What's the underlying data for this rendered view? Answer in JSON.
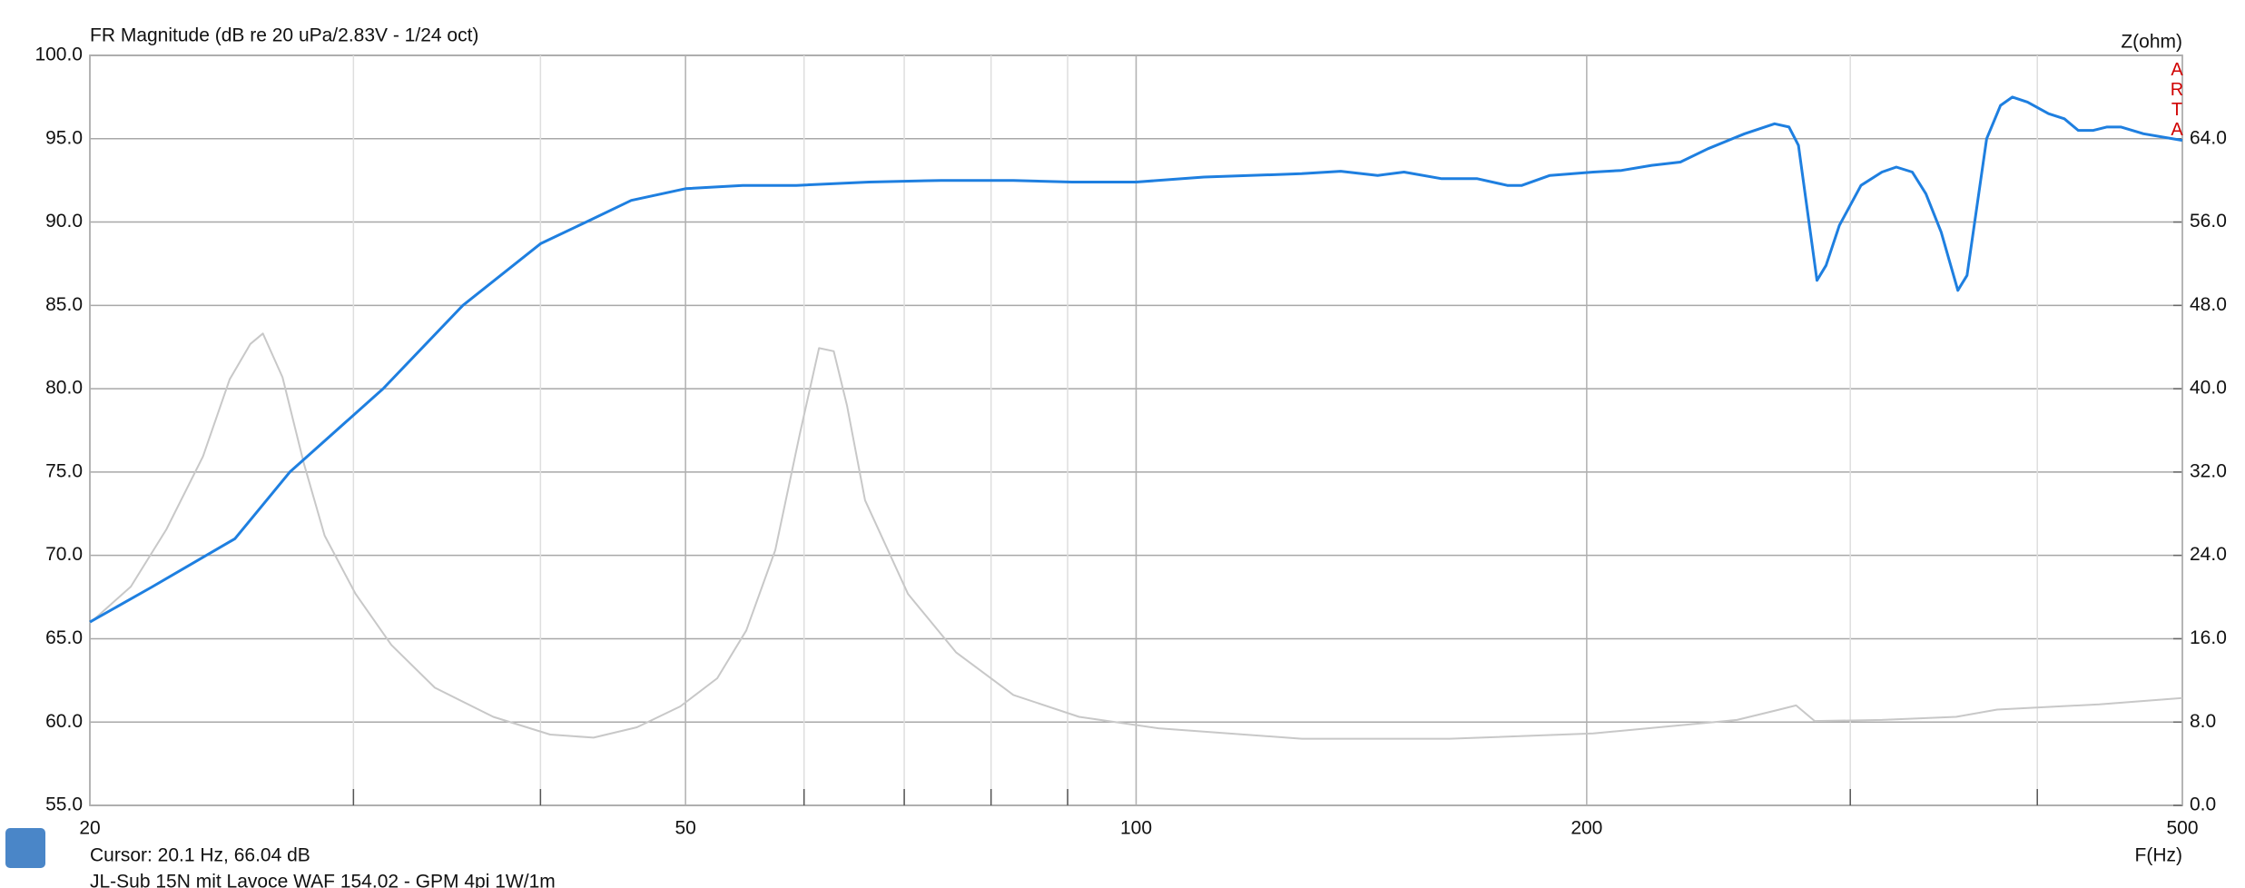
{
  "chart_data": {
    "type": "line",
    "title": "FR Magnitude (dB re 20 uPa/2.83V - 1/24 oct)",
    "y2_label": "Z(ohm)",
    "x_label": "F(Hz)",
    "watermark": "ARTA",
    "cursor": "Cursor: 20.1 Hz, 66.04 dB",
    "legend": "JL-Sub 15N mit Lavoce WAF 154.02 - GPM 4pi 1W/1m",
    "xscale": "log",
    "grid": true,
    "xlim": [
      20,
      500
    ],
    "xticks": [
      20,
      50,
      100,
      200,
      500
    ],
    "xminorticks": [
      30,
      40,
      60,
      70,
      80,
      90,
      300,
      400
    ],
    "ylim": [
      55,
      100
    ],
    "yticks": [
      {
        "value": 55,
        "label": "55.0"
      },
      {
        "value": 60,
        "label": "60.0"
      },
      {
        "value": 65,
        "label": "65.0"
      },
      {
        "value": 70,
        "label": "70.0"
      },
      {
        "value": 75,
        "label": "75.0"
      },
      {
        "value": 80,
        "label": "80.0"
      },
      {
        "value": 85,
        "label": "85.0"
      },
      {
        "value": 90,
        "label": "90.0"
      },
      {
        "value": 95,
        "label": "95.0"
      },
      {
        "value": 100,
        "label": "100.0"
      }
    ],
    "y2lim": [
      0,
      72
    ],
    "y2ticks": [
      {
        "value": 0,
        "label": "0.0"
      },
      {
        "value": 8,
        "label": "8.0"
      },
      {
        "value": 16,
        "label": "16.0"
      },
      {
        "value": 24,
        "label": "24.0"
      },
      {
        "value": 32,
        "label": "32.0"
      },
      {
        "value": 40,
        "label": "40.0"
      },
      {
        "value": 48,
        "label": "48.0"
      },
      {
        "value": 56,
        "label": "56.0"
      },
      {
        "value": 64,
        "label": "64.0"
      }
    ],
    "series": [
      {
        "color": "#c8c8c8",
        "axis": "y2",
        "x": [
          20,
          21.3,
          22.5,
          23.8,
          24.8,
          25.6,
          26.1,
          26.9,
          27.8,
          28.7,
          30.1,
          31.8,
          34.0,
          37.2,
          40.6,
          43.4,
          46.4,
          49.6,
          52.5,
          54.9,
          57.4,
          59.6,
          61.4,
          62.8,
          64.1,
          65.9,
          70.4,
          75.8,
          82.8,
          91.6,
          103.5,
          129,
          162,
          202,
          252,
          269,
          276,
          284,
          315,
          353,
          376,
          440,
          500
        ],
        "values": [
          17.5,
          21.0,
          26.5,
          33.5,
          40.9,
          44.3,
          45.3,
          41.1,
          32.8,
          25.9,
          20.3,
          15.4,
          11.3,
          8.5,
          6.8,
          6.5,
          7.5,
          9.5,
          12.2,
          16.8,
          24.5,
          35.6,
          43.9,
          43.6,
          38.4,
          29.3,
          20.3,
          14.7,
          10.6,
          8.5,
          7.4,
          6.4,
          6.4,
          6.9,
          8.2,
          9.2,
          9.6,
          8.1,
          8.2,
          8.5,
          9.2,
          9.7,
          10.3
        ]
      },
      {
        "color": "#1e7fe0",
        "x": [
          20,
          22,
          25,
          27.2,
          31.4,
          35.5,
          40,
          42.9,
          46,
          50,
          54.6,
          59.3,
          66.3,
          74.1,
          82.8,
          90.6,
          100,
          111,
          129,
          137,
          145,
          151,
          160,
          169,
          177,
          181,
          189,
          202,
          211,
          221,
          231,
          241,
          255,
          267,
          273,
          277,
          285,
          289,
          295,
          305,
          315,
          322,
          330,
          337,
          345,
          354,
          359,
          370,
          378,
          385,
          394,
          407,
          417,
          426,
          436,
          445,
          455,
          471,
          500
        ],
        "values": [
          66.0,
          68.1,
          71.0,
          75.0,
          80.0,
          85.0,
          88.7,
          90.0,
          91.3,
          92.0,
          92.2,
          92.2,
          92.4,
          92.5,
          92.5,
          92.4,
          92.4,
          92.7,
          92.9,
          93.05,
          92.8,
          93.0,
          92.6,
          92.6,
          92.2,
          92.2,
          92.8,
          93.0,
          93.1,
          93.4,
          93.6,
          94.4,
          95.3,
          95.9,
          95.7,
          94.6,
          86.5,
          87.4,
          89.8,
          92.2,
          93.0,
          93.3,
          93.0,
          91.7,
          89.4,
          85.9,
          86.8,
          95.0,
          97.0,
          97.5,
          97.2,
          96.5,
          96.2,
          95.5,
          95.5,
          95.7,
          95.7,
          95.3,
          94.9
        ]
      }
    ]
  }
}
